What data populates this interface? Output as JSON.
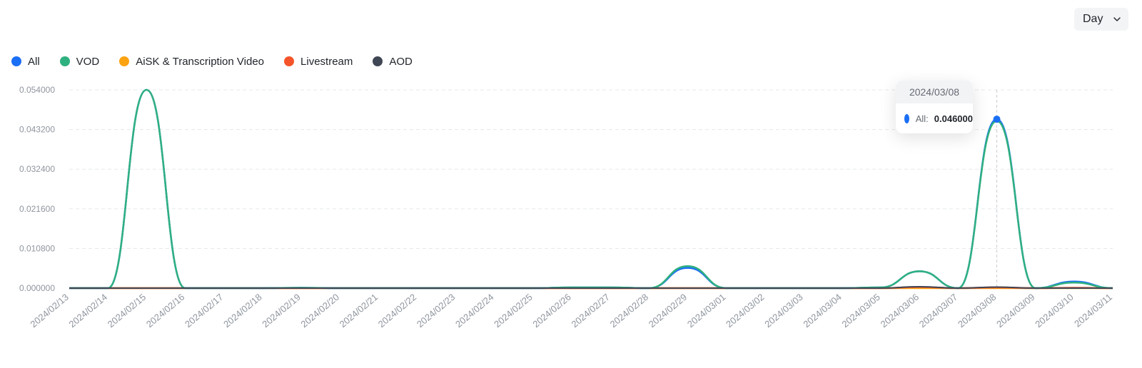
{
  "period_select": {
    "value": "Day"
  },
  "tooltip": {
    "date": "2024/03/08",
    "series": "All:",
    "value": "0.046000",
    "color": "#1b6ff5"
  },
  "chart_data": {
    "type": "line",
    "title": "",
    "xlabel": "",
    "ylabel": "",
    "ylim": [
      0,
      0.054
    ],
    "yticks": [
      "0.054000",
      "0.043200",
      "0.032400",
      "0.021600",
      "0.010800",
      "0.000000"
    ],
    "grid": true,
    "legend_position": "top-left",
    "x": [
      "2024/02/13",
      "2024/02/14",
      "2024/02/15",
      "2024/02/16",
      "2024/02/17",
      "2024/02/18",
      "2024/02/19",
      "2024/02/20",
      "2024/02/21",
      "2024/02/22",
      "2024/02/23",
      "2024/02/24",
      "2024/02/25",
      "2024/02/26",
      "2024/02/27",
      "2024/02/28",
      "2024/02/29",
      "2024/03/01",
      "2024/03/02",
      "2024/03/03",
      "2024/03/04",
      "2024/03/05",
      "2024/03/06",
      "2024/03/07",
      "2024/03/08",
      "2024/03/09",
      "2024/03/10",
      "2024/03/11"
    ],
    "series": [
      {
        "name": "All",
        "color": "#1b6ff5",
        "values": [
          0,
          0,
          0.054,
          0,
          0,
          0,
          0.0001,
          0,
          0,
          0,
          0,
          0,
          0,
          0.0002,
          0.0002,
          0,
          0.0055,
          0,
          0,
          0,
          0,
          0.0002,
          0.0046,
          0,
          0.046,
          0,
          0.0018,
          0
        ]
      },
      {
        "name": "VOD",
        "color": "#2fb07f",
        "values": [
          0,
          0,
          0.054,
          0,
          0,
          0,
          0.0001,
          0,
          0,
          0,
          0,
          0,
          0,
          0.0002,
          0.0002,
          0,
          0.006,
          0,
          0,
          0,
          0,
          0.0002,
          0.0046,
          0,
          0.0455,
          0,
          0.0015,
          0
        ]
      },
      {
        "name": "AiSK & Transcription Video",
        "color": "#fca311",
        "values": [
          0,
          0,
          0,
          0,
          0,
          0,
          0,
          0,
          0,
          0,
          0,
          0,
          0,
          0,
          0,
          0,
          0,
          0,
          0,
          0,
          0,
          0,
          0,
          0,
          0,
          0,
          0,
          0
        ]
      },
      {
        "name": "Livestream",
        "color": "#f5542b",
        "values": [
          0,
          0,
          0,
          0,
          0,
          0,
          0,
          0,
          0,
          0,
          0,
          0,
          0,
          0,
          0,
          0,
          0,
          0,
          0,
          0,
          0,
          0,
          0.0003,
          0,
          0.0002,
          0,
          0.0001,
          0
        ]
      },
      {
        "name": "AOD",
        "color": "#3f4654",
        "values": [
          0,
          0,
          0,
          0,
          0,
          0,
          0,
          0,
          0,
          0,
          0,
          0,
          0,
          0,
          0,
          0,
          0,
          0,
          0,
          0,
          0,
          0,
          0.0004,
          0,
          0.0003,
          0,
          0,
          0
        ]
      }
    ]
  }
}
